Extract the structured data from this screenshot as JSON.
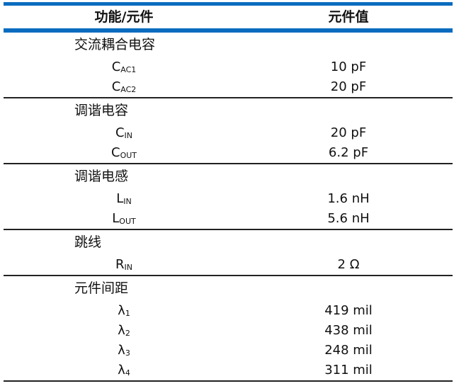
{
  "header": {
    "col1": "功能/元件",
    "col2": "元件值"
  },
  "colors": {
    "accent": "#0a6cbf"
  },
  "sections": [
    {
      "label": "交流耦合电容",
      "items": [
        {
          "sym": "C",
          "sub": "AC1",
          "value": "10 pF"
        },
        {
          "sym": "C",
          "sub": "AC2",
          "value": "20 pF"
        }
      ]
    },
    {
      "label": "调谐电容",
      "items": [
        {
          "sym": "C",
          "sub": "IN",
          "value": "20 pF"
        },
        {
          "sym": "C",
          "sub": "OUT",
          "value": "6.2 pF"
        }
      ]
    },
    {
      "label": "调谐电感",
      "items": [
        {
          "sym": "L",
          "sub": "IN",
          "value": "1.6 nH"
        },
        {
          "sym": "L",
          "sub": "OUT",
          "value": "5.6 nH"
        }
      ]
    },
    {
      "label": "跳线",
      "items": [
        {
          "sym": "R",
          "sub": "IN",
          "value": "2 Ω"
        }
      ]
    },
    {
      "label": "元件间距",
      "items": [
        {
          "sym": "λ",
          "sub": "1",
          "value": "419 mil"
        },
        {
          "sym": "λ",
          "sub": "2",
          "value": "438 mil"
        },
        {
          "sym": "λ",
          "sub": "3",
          "value": "248 mil"
        },
        {
          "sym": "λ",
          "sub": "4",
          "value": "311 mil"
        }
      ]
    }
  ]
}
